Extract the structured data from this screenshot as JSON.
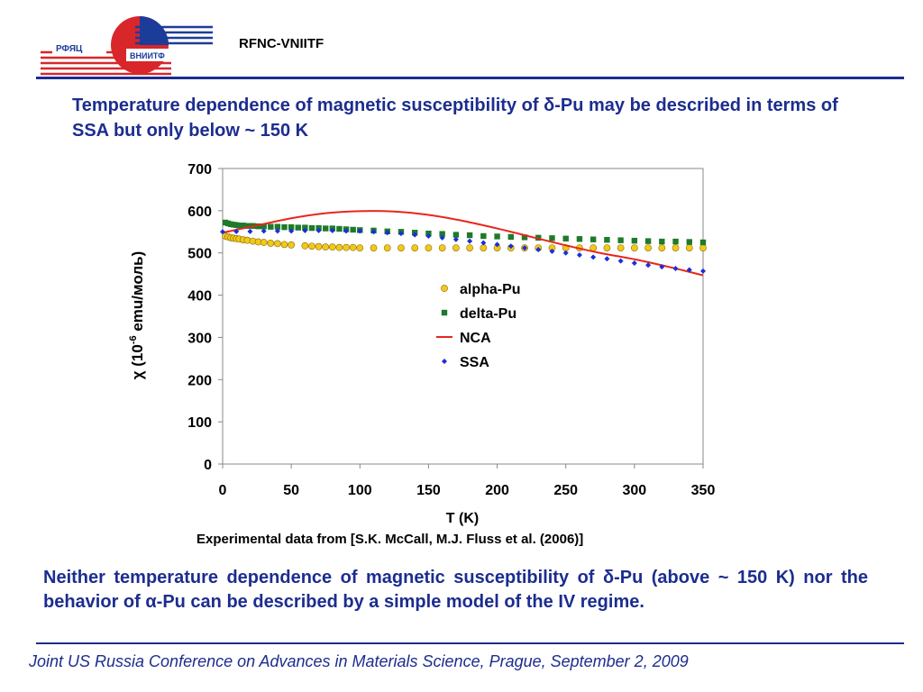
{
  "header": {
    "logo_text_top": "РФЯЦ",
    "logo_text_bottom": "ВНИИТФ",
    "org_name": "RFNC-VNIITF"
  },
  "title": {
    "prefix": "Temperature dependence of magnetic susceptibility of ",
    "symbol": "δ",
    "suffix": "-Pu may be described in terms of SSA but only below ~ 150 K"
  },
  "chart_data": {
    "type": "scatter",
    "xlabel": "T (K)",
    "ylabel": "χ (10-6 emu/моль)",
    "ylabel_parts": {
      "chi": "χ",
      "base": " (10",
      "sup": "-6",
      "unit": " emu/моль)"
    },
    "xlim": [
      0,
      350
    ],
    "ylim": [
      0,
      700
    ],
    "xticks": [
      0,
      50,
      100,
      150,
      200,
      250,
      300,
      350
    ],
    "yticks": [
      0,
      100,
      200,
      300,
      400,
      500,
      600,
      700
    ],
    "grid": false,
    "legend_position": "center-right",
    "series": [
      {
        "name": "alpha-Pu",
        "marker": "circle",
        "color": "#f2c81c",
        "x": [
          2,
          4,
          6,
          8,
          10,
          12,
          15,
          18,
          22,
          26,
          30,
          35,
          40,
          45,
          50,
          60,
          65,
          70,
          75,
          80,
          85,
          90,
          95,
          100,
          110,
          120,
          130,
          140,
          150,
          160,
          170,
          180,
          190,
          200,
          210,
          220,
          230,
          240,
          250,
          260,
          270,
          280,
          290,
          300,
          310,
          320,
          330,
          340,
          350
        ],
        "y": [
          540,
          538,
          536,
          535,
          534,
          533,
          531,
          530,
          528,
          526,
          525,
          523,
          522,
          520,
          519,
          517,
          516,
          515,
          514,
          514,
          513,
          513,
          513,
          512,
          512,
          512,
          512,
          512,
          512,
          512,
          512,
          512,
          512,
          512,
          512,
          512,
          512,
          512,
          512,
          512,
          512,
          512,
          512,
          512,
          512,
          512,
          512,
          512,
          512
        ]
      },
      {
        "name": "delta-Pu",
        "marker": "square",
        "color": "#1e7a2a",
        "x": [
          2,
          4,
          6,
          8,
          10,
          12,
          15,
          18,
          22,
          26,
          30,
          35,
          40,
          45,
          50,
          55,
          60,
          65,
          70,
          75,
          80,
          85,
          90,
          95,
          100,
          110,
          120,
          130,
          140,
          150,
          160,
          170,
          180,
          190,
          200,
          210,
          220,
          230,
          240,
          250,
          260,
          270,
          280,
          290,
          300,
          310,
          320,
          330,
          340,
          350
        ],
        "y": [
          572,
          570,
          568,
          567,
          566,
          565,
          565,
          564,
          564,
          563,
          563,
          562,
          562,
          561,
          561,
          560,
          560,
          559,
          559,
          558,
          558,
          557,
          556,
          555,
          554,
          553,
          551,
          550,
          548,
          546,
          545,
          543,
          542,
          540,
          539,
          538,
          537,
          536,
          535,
          534,
          533,
          532,
          531,
          530,
          529,
          528,
          527,
          527,
          526,
          525
        ]
      },
      {
        "name": "NCA",
        "marker": "line",
        "color": "#e8261c",
        "x": [
          0,
          25,
          50,
          75,
          100,
          125,
          150,
          175,
          200,
          225,
          250,
          275,
          300,
          325,
          350
        ],
        "y": [
          548,
          565,
          582,
          594,
          599,
          598,
          590,
          576,
          558,
          538,
          518,
          500,
          485,
          467,
          447
        ]
      },
      {
        "name": "SSA",
        "marker": "diamond",
        "color": "#1a2fd8",
        "x": [
          0,
          10,
          20,
          30,
          40,
          50,
          60,
          70,
          80,
          90,
          100,
          110,
          120,
          130,
          140,
          150,
          160,
          170,
          180,
          190,
          200,
          210,
          220,
          230,
          240,
          250,
          260,
          270,
          280,
          290,
          300,
          310,
          320,
          330,
          340,
          350
        ],
        "y": [
          550,
          551,
          551,
          552,
          552,
          552,
          553,
          553,
          553,
          552,
          552,
          550,
          548,
          546,
          543,
          540,
          536,
          532,
          528,
          524,
          520,
          516,
          512,
          508,
          504,
          500,
          495,
          490,
          486,
          481,
          476,
          471,
          467,
          463,
          460,
          457
        ]
      }
    ]
  },
  "citation": "Experimental data from [S.K. McCall, M.J. Fluss et al. (2006)]",
  "conclusion": {
    "part1": "Neither temperature dependence of magnetic susceptibility of ",
    "delta": "δ",
    "part2": "-Pu (above ~ 150 K) nor the behavior of ",
    "alpha": "α",
    "part3": "-Pu can be described by a simple model of the IV regime."
  },
  "footer": "Joint US Russia Conference on Advances in Materials Science, Prague, September 2, 2009",
  "colors": {
    "accent": "#1c2d8f",
    "logo_red": "#d8262a",
    "logo_blue": "#1c3c9a"
  }
}
